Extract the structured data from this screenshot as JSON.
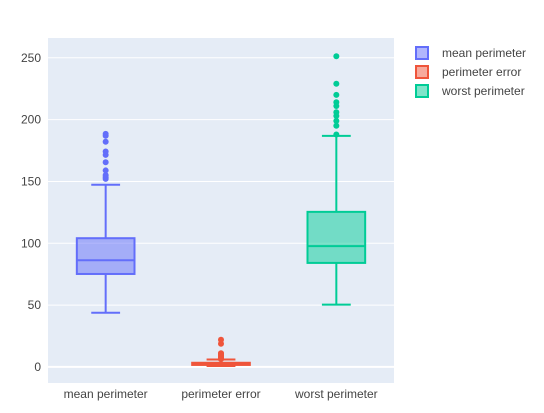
{
  "chart_data": {
    "type": "box",
    "title": "",
    "xlabel": "",
    "ylabel": "",
    "ylim": [
      -13,
      266
    ],
    "yticks": [
      0,
      50,
      100,
      150,
      200,
      250
    ],
    "grid": true,
    "legend_position": "top-right",
    "categories": [
      "mean perimeter",
      "perimeter error",
      "worst perimeter"
    ],
    "series": [
      {
        "name": "mean perimeter",
        "color": "#636efa",
        "min": 43.79,
        "q1": 75.17,
        "median": 86.24,
        "q3": 104.1,
        "max": 147.3,
        "outliers": [
          152.1,
          153.5,
          155.1,
          158.9,
          165.5,
          171.5,
          174.2,
          182.1,
          186.9,
          188.5
        ]
      },
      {
        "name": "perimeter error",
        "color": "#EF553B",
        "min": 0.76,
        "q1": 1.61,
        "median": 2.29,
        "q3": 3.36,
        "max": 5.99,
        "outliers": [
          6.3,
          6.8,
          7.3,
          7.8,
          8.6,
          9.4,
          10.1,
          10.9,
          11.1,
          18.7,
          21.98
        ]
      },
      {
        "name": "worst perimeter",
        "color": "#00cc96",
        "min": 50.41,
        "q1": 84.11,
        "median": 97.66,
        "q3": 125.4,
        "max": 186.8,
        "outliers": [
          188.0,
          195.0,
          199.0,
          203.0,
          206.0,
          211.0,
          214.0,
          220.0,
          229.0,
          251.2
        ]
      }
    ]
  }
}
